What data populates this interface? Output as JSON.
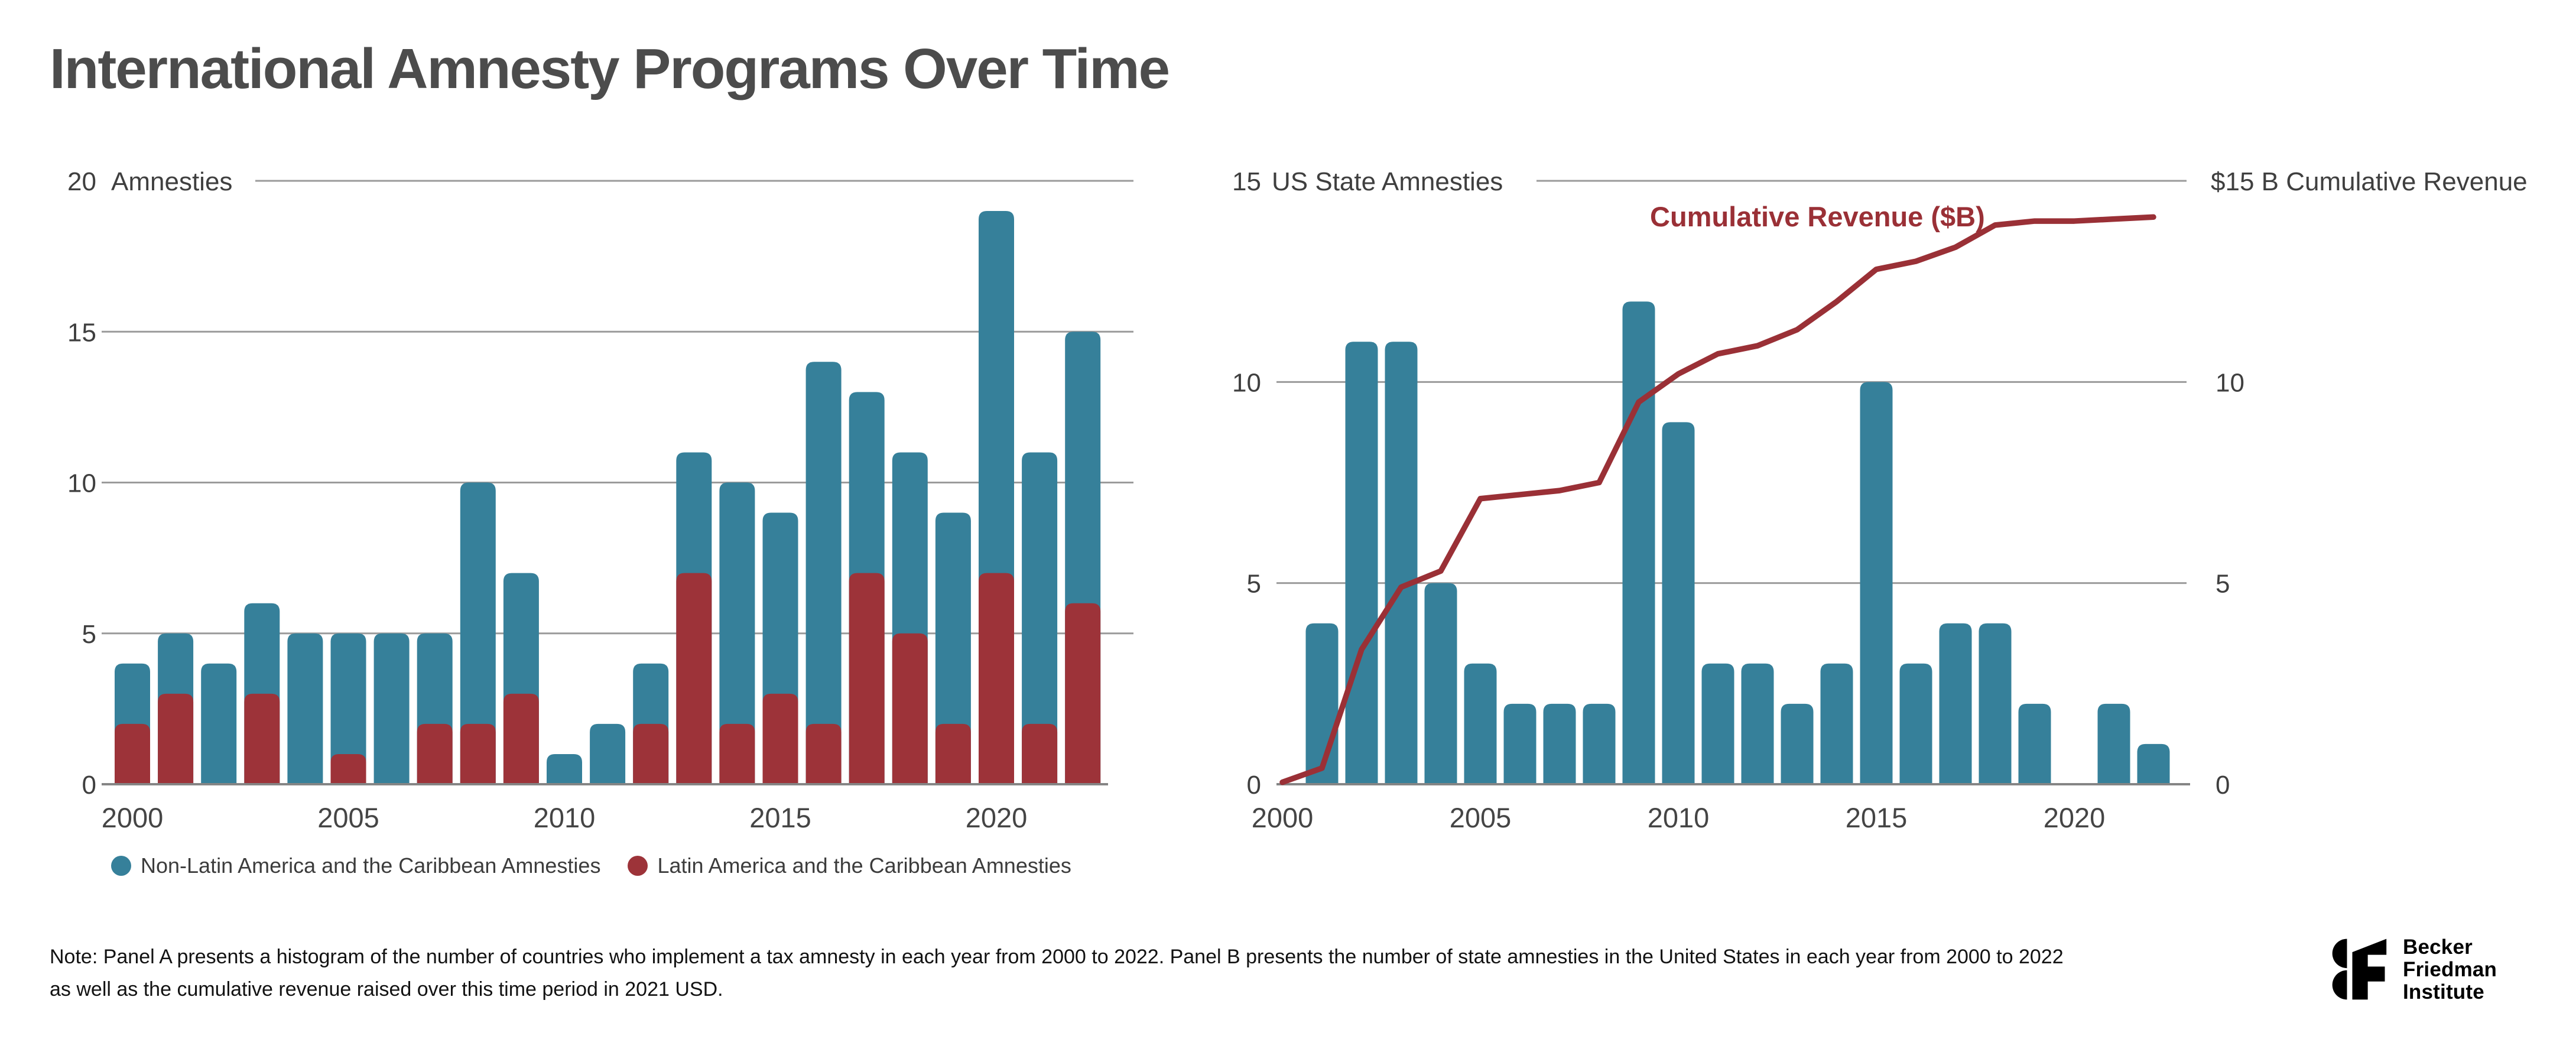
{
  "title": "International Amnesty Programs Over Time",
  "colors": {
    "bar_blue": "#36809A",
    "bar_red": "#9D3339",
    "line_red": "#9A3036",
    "grid": "#9B9B9B",
    "axis": "#858585",
    "tick_text": "#3F3F3F",
    "xlabel_text": "#454545",
    "title_text": "#4C4C4C"
  },
  "chart_data": [
    {
      "type": "bar",
      "panel": "A",
      "stacked": true,
      "categories": [
        2000,
        2001,
        2002,
        2003,
        2004,
        2005,
        2006,
        2007,
        2008,
        2009,
        2010,
        2011,
        2012,
        2013,
        2014,
        2015,
        2016,
        2017,
        2018,
        2019,
        2020,
        2021,
        2022
      ],
      "series": [
        {
          "name": "Non-Latin America and the Caribbean Amnesties",
          "color": "#36809A",
          "values": [
            2,
            2,
            4,
            3,
            5,
            4,
            5,
            3,
            8,
            4,
            1,
            2,
            2,
            4,
            8,
            6,
            12,
            6,
            6,
            7,
            12,
            9,
            9
          ]
        },
        {
          "name": "Latin America and the Caribbean Amnesties",
          "color": "#9D3339",
          "values": [
            2,
            3,
            0,
            3,
            0,
            1,
            0,
            2,
            2,
            3,
            0,
            0,
            2,
            7,
            2,
            3,
            2,
            7,
            5,
            2,
            7,
            2,
            6
          ]
        }
      ],
      "totals": [
        4,
        5,
        4,
        6,
        5,
        5,
        5,
        5,
        10,
        7,
        1,
        2,
        4,
        11,
        10,
        9,
        14,
        13,
        11,
        9,
        19,
        11,
        15
      ],
      "ylabel": "Amnesties",
      "ylim": [
        0,
        20
      ],
      "y_ticks": [
        0,
        5,
        10,
        15,
        20
      ],
      "x_ticks": [
        2000,
        2005,
        2010,
        2015,
        2020
      ],
      "grid": true,
      "legend_position": "bottom"
    },
    {
      "type": "bar+line",
      "panel": "B",
      "categories": [
        2000,
        2001,
        2002,
        2003,
        2004,
        2005,
        2006,
        2007,
        2008,
        2009,
        2010,
        2011,
        2012,
        2013,
        2014,
        2015,
        2016,
        2017,
        2018,
        2019,
        2020,
        2021,
        2022
      ],
      "bars": {
        "name": "US State Amnesties",
        "color": "#36809A",
        "values": [
          0,
          4,
          11,
          11,
          5,
          3,
          2,
          2,
          2,
          12,
          9,
          3,
          3,
          2,
          3,
          10,
          3,
          4,
          4,
          2,
          0,
          2,
          1
        ]
      },
      "line": {
        "name": "Cumulative Revenue ($B)",
        "color": "#9A3036",
        "values": [
          0.05,
          0.4,
          3.35,
          4.9,
          5.3,
          7.1,
          7.2,
          7.3,
          7.5,
          9.5,
          10.2,
          10.7,
          10.9,
          11.3,
          12,
          12.8,
          13,
          13.35,
          13.9,
          14,
          14,
          14.05,
          14.1
        ]
      },
      "left_axis": {
        "title": "US State Amnesties",
        "ylim": [
          0,
          15
        ],
        "ticks": [
          0,
          5,
          10,
          15
        ]
      },
      "right_axis": {
        "title": "$15 B Cumulative Revenue",
        "ylim": [
          0,
          15
        ],
        "ticks": [
          0,
          5,
          10
        ]
      },
      "annotation": "Cumulative Revenue ($B)",
      "x_ticks": [
        2000,
        2005,
        2010,
        2015,
        2020
      ],
      "grid": true
    }
  ],
  "legend": {
    "items": [
      {
        "label": "Non-Latin America and the Caribbean Amnesties",
        "color": "#36809A"
      },
      {
        "label": "Latin America and the Caribbean Amnesties",
        "color": "#9D3339"
      }
    ]
  },
  "note": {
    "line1": "Note: Panel A presents a histogram of the number of countries who implement a tax amnesty in each year from 2000 to 2022. Panel B presents the number of state amnesties in the United States in each year from 2000 to 2022",
    "line2": "as well as the cumulative revenue raised over this time period in 2021 USD."
  },
  "logo": {
    "line1": "Becker",
    "line2": "Friedman",
    "line3": "Institute"
  }
}
